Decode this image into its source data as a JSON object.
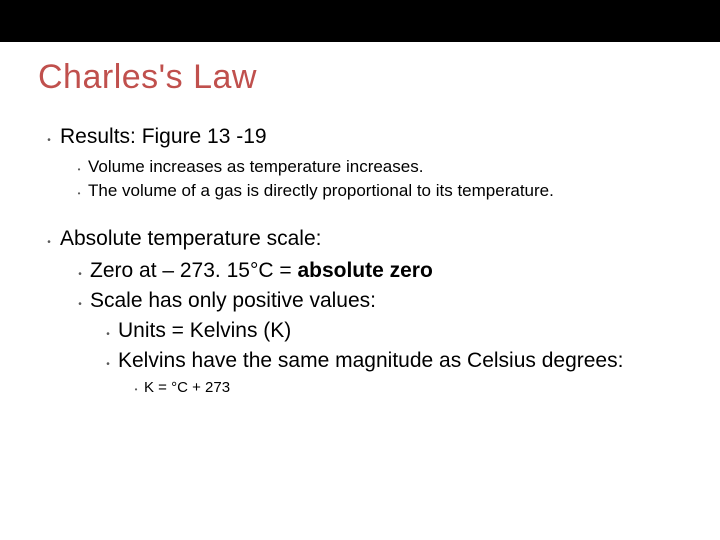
{
  "colors": {
    "header_bar": "#000000",
    "background": "#ffffff",
    "title": "#c0504d",
    "bullet_dot": "#595959",
    "body_text": "#000000"
  },
  "typography": {
    "font_family": "Arial",
    "title_fontsize": 34,
    "l1_fontsize": 21,
    "l2_small_fontsize": 17,
    "l4_fontsize": 15
  },
  "title": "Charles's Law",
  "l1_results": "Results: Figure 13 -19",
  "l2_volume_inc": "Volume increases as temperature increases.",
  "l2_proportional": "The volume of a gas is directly proportional to its temperature.",
  "l1_abs_temp": "Absolute temperature scale:",
  "l2_zero_prefix": "Zero at – 273. 15°C = ",
  "l2_zero_bold": "absolute zero",
  "l2_positive": "Scale has only positive values:",
  "l3_units": "Units = Kelvins (K)",
  "l3_magnitude": "Kelvins have the same magnitude as Celsius degrees:",
  "l4_formula": "K = °C + 273"
}
